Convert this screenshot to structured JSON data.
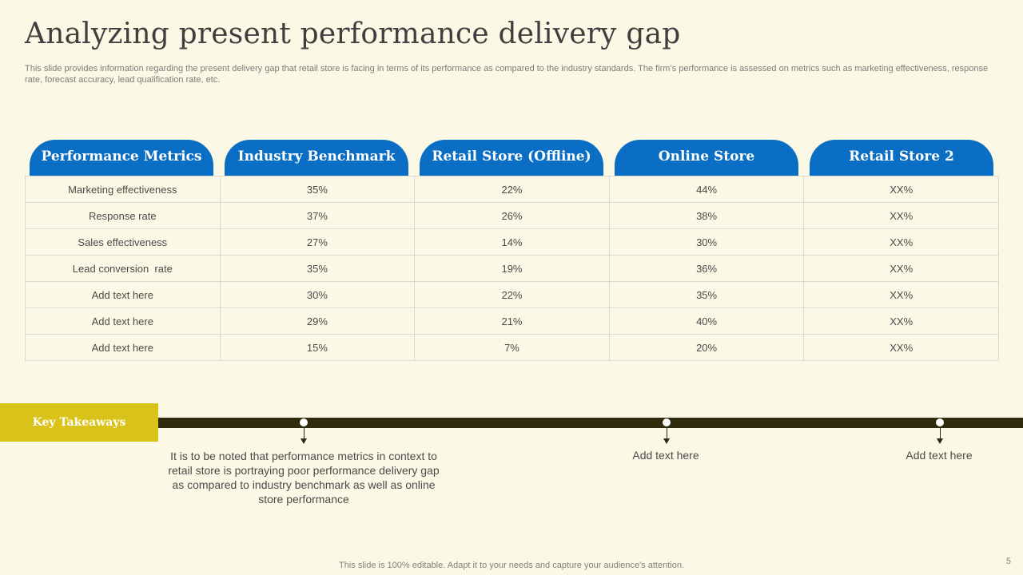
{
  "title": "Analyzing present performance delivery gap",
  "subtitle": "This slide provides information regarding the present delivery gap that retail store is facing in terms of its performance as compared to the industry standards. The firm’s performance is assessed on metrics such as marketing effectiveness, response rate, forecast accuracy, lead qualification rate, etc.",
  "columns": [
    "Performance Metrics",
    "Industry Benchmark",
    "Retail Store (Offline)",
    "Online Store",
    "Retail Store 2"
  ],
  "rows": [
    [
      "Marketing effectiveness",
      "35%",
      "22%",
      "44%",
      "XX%"
    ],
    [
      "Response rate",
      "37%",
      "26%",
      "38%",
      "XX%"
    ],
    [
      "Sales effectiveness",
      "27%",
      "14%",
      "30%",
      "XX%"
    ],
    [
      "Lead conversion  rate",
      "35%",
      "19%",
      "36%",
      "XX%"
    ],
    [
      "Add text here",
      "30%",
      "22%",
      "35%",
      "XX%"
    ],
    [
      "Add text here",
      "29%",
      "21%",
      "40%",
      "XX%"
    ],
    [
      "Add text here",
      "15%",
      "7%",
      "20%",
      "XX%"
    ]
  ],
  "key_takeaways": {
    "label": "Key Takeaways",
    "items": [
      "It is to be noted that performance metrics in context to retail store is portraying poor performance delivery gap as compared to industry benchmark as well as online store performance",
      "Add text here",
      "Add text here"
    ]
  },
  "footer": "This slide is 100% editable. Adapt it to your needs and capture your audience's attention.",
  "page_number": "5",
  "colors": {
    "background": "#fbf9e6",
    "header_blue": "#0a6ec5",
    "takeaway_yellow": "#d9c21a",
    "timeline_dark": "#2f2a0c"
  }
}
